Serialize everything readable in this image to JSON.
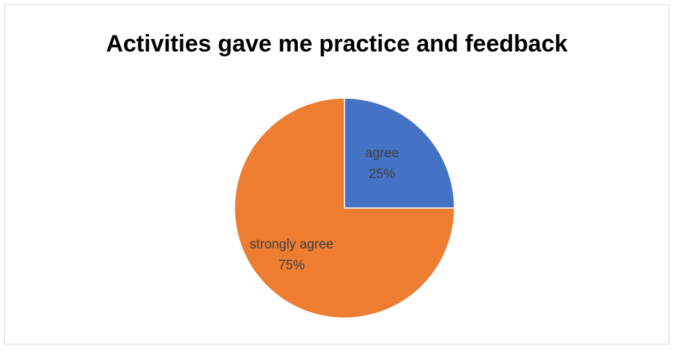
{
  "chart_data": {
    "type": "pie",
    "title": "Activities gave me practice and feedback",
    "start_angle_deg": 0,
    "direction": "clockwise",
    "legend": "none",
    "slices": [
      {
        "label": "agree",
        "value": 25,
        "display": "25%",
        "color": "#4472c4"
      },
      {
        "label": "strongly agree",
        "value": 75,
        "display": "75%",
        "color": "#ed7d31"
      }
    ]
  }
}
